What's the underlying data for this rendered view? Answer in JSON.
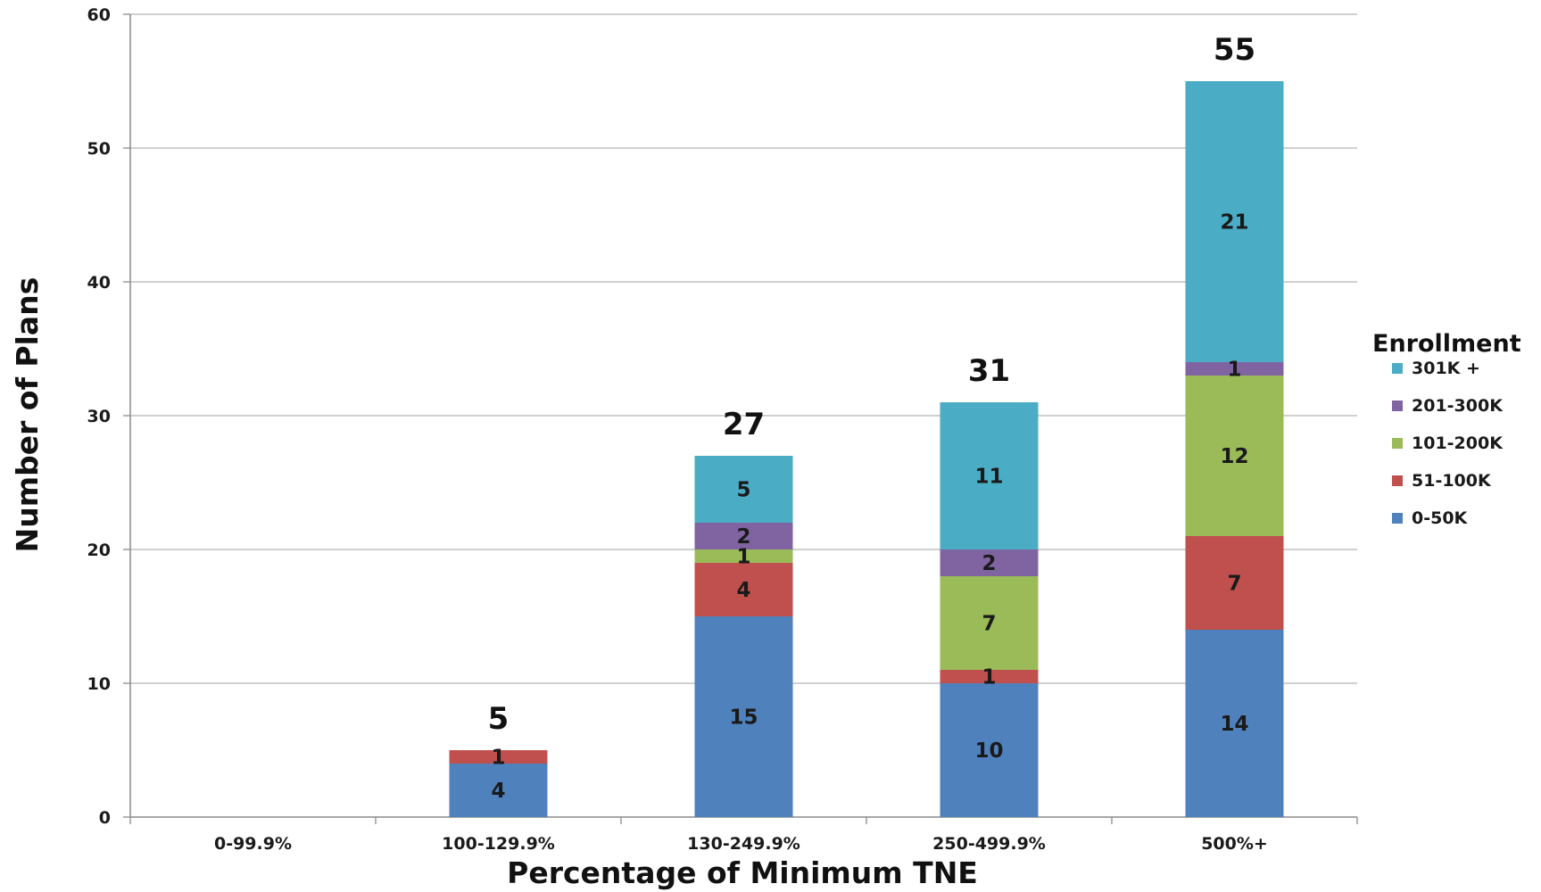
{
  "chart_data": {
    "type": "bar",
    "stacked": true,
    "title": "",
    "xlabel": "Percentage of Minimum TNE",
    "ylabel": "Number of Plans",
    "ylim": [
      0,
      60
    ],
    "yticks": [
      0,
      10,
      20,
      30,
      40,
      50,
      60
    ],
    "grid": true,
    "legend_title": "Enrollment",
    "legend_position": "right",
    "categories": [
      "0-99.9%",
      "100-129.9%",
      "130-249.9%",
      "250-499.9%",
      "500%+"
    ],
    "totals": [
      null,
      5,
      27,
      31,
      55
    ],
    "series": [
      {
        "name": "0-50K",
        "color": "#4f81bd",
        "values": [
          0,
          4,
          15,
          10,
          14
        ]
      },
      {
        "name": "51-100K",
        "color": "#c0504d",
        "values": [
          0,
          1,
          4,
          1,
          7
        ]
      },
      {
        "name": "101-200K",
        "color": "#9bbb59",
        "values": [
          0,
          0,
          1,
          7,
          12
        ]
      },
      {
        "name": "201-300K",
        "color": "#8064a2",
        "values": [
          0,
          0,
          2,
          2,
          1
        ]
      },
      {
        "name": "301K +",
        "color": "#4bacc6",
        "values": [
          0,
          0,
          5,
          11,
          21
        ]
      }
    ]
  }
}
